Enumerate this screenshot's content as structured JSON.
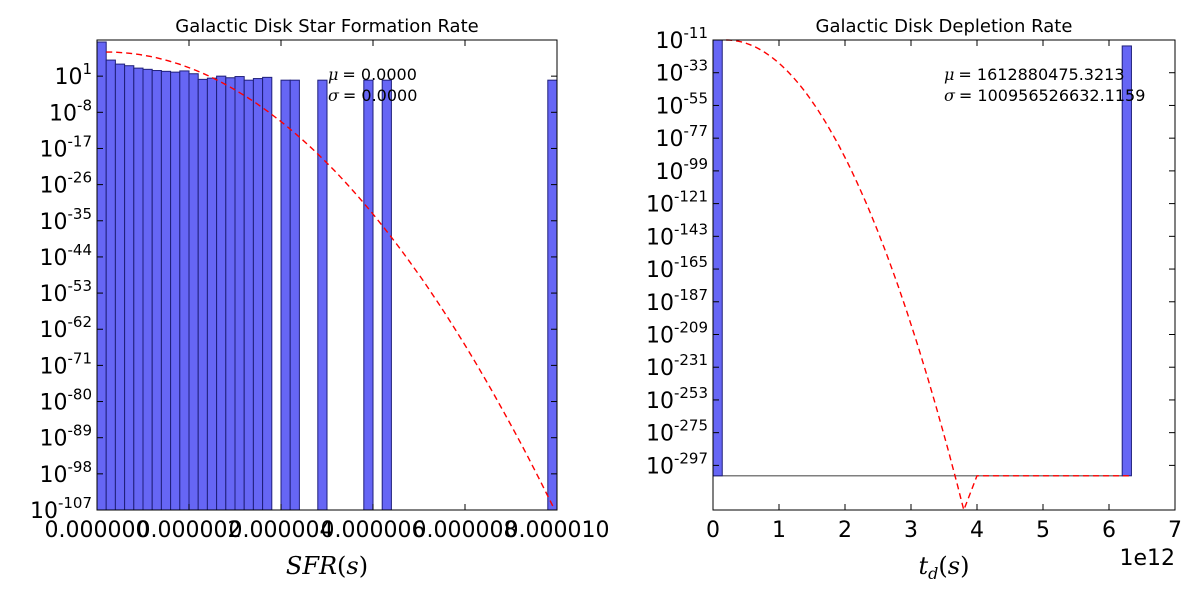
{
  "colors": {
    "bar_fill": "#6666f5",
    "bar_edge": "#1f1f7a",
    "fit_line": "#ff0000",
    "baseline": "#555555"
  },
  "chart_data": [
    {
      "type": "bar",
      "title": "Galactic Disk Star Formation Rate",
      "xlabel": "SFR(s)",
      "ylabel": "",
      "xlim": [
        0.0,
        1e-05
      ],
      "ylog_exponent_range": [
        -107,
        10
      ],
      "x_tick_labels": [
        "0.000000",
        "0.000002",
        "0.000004",
        "0.000006",
        "0.000008",
        "0.000010"
      ],
      "y_tick_labels": [
        {
          "base": "10",
          "exp": "1"
        },
        {
          "base": "10",
          "exp": "-8"
        },
        {
          "base": "10",
          "exp": "-17"
        },
        {
          "base": "10",
          "exp": "-26"
        },
        {
          "base": "10",
          "exp": "-35"
        },
        {
          "base": "10",
          "exp": "-44"
        },
        {
          "base": "10",
          "exp": "-53"
        },
        {
          "base": "10",
          "exp": "-62"
        },
        {
          "base": "10",
          "exp": "-71"
        },
        {
          "base": "10",
          "exp": "-80"
        },
        {
          "base": "10",
          "exp": "-89"
        },
        {
          "base": "10",
          "exp": "-98"
        },
        {
          "base": "10",
          "exp": "-107"
        }
      ],
      "y_tick_exponents": [
        1,
        -8,
        -17,
        -26,
        -35,
        -44,
        -53,
        -62,
        -71,
        -80,
        -89,
        -98,
        -107
      ],
      "bin_width": 2e-07,
      "bins": [
        {
          "x": 0.0,
          "log10": 9.5
        },
        {
          "x": 2e-07,
          "log10": 5.0
        },
        {
          "x": 4e-07,
          "log10": 4.0
        },
        {
          "x": 6e-07,
          "log10": 3.6
        },
        {
          "x": 8e-07,
          "log10": 3.0
        },
        {
          "x": 1e-06,
          "log10": 2.7
        },
        {
          "x": 1.2e-06,
          "log10": 2.4
        },
        {
          "x": 1.4e-06,
          "log10": 2.2
        },
        {
          "x": 1.6e-06,
          "log10": 2.0
        },
        {
          "x": 1.8e-06,
          "log10": 2.3
        },
        {
          "x": 2e-06,
          "log10": 1.6
        },
        {
          "x": 2.2e-06,
          "log10": 0.2
        },
        {
          "x": 2.4e-06,
          "log10": 0.5
        },
        {
          "x": 2.6e-06,
          "log10": 1.0
        },
        {
          "x": 2.8e-06,
          "log10": 0.6
        },
        {
          "x": 3e-06,
          "log10": 0.9
        },
        {
          "x": 3.2e-06,
          "log10": 0.0
        },
        {
          "x": 3.4e-06,
          "log10": 0.4
        },
        {
          "x": 3.6e-06,
          "log10": 0.7
        },
        {
          "x": 4e-06,
          "log10": 0.0
        },
        {
          "x": 4.2e-06,
          "log10": 0.0
        },
        {
          "x": 4.8e-06,
          "log10": 0.0
        },
        {
          "x": 5.8e-06,
          "log10": 0.0
        },
        {
          "x": 6.2e-06,
          "log10": 0.0
        },
        {
          "x": 9.8e-06,
          "log10": 0.0
        }
      ],
      "fit_curve": {
        "style": "dashed",
        "peak_x": 2e-07,
        "peak_log10": 7.0,
        "end_x": 9.95e-06,
        "end_log10": -107.0
      },
      "annotation": {
        "mu": "= 0.0000",
        "sigma": "= 0.0000"
      },
      "grid": false
    },
    {
      "type": "bar",
      "title": "Galactic Disk Depletion Rate",
      "xlabel": "t_d(s)",
      "ylabel": "",
      "xlim": [
        0,
        7
      ],
      "x_scale_offset": "1e12",
      "ylog_exponent_range": [
        -327,
        -11
      ],
      "x_tick_labels": [
        "0",
        "1",
        "2",
        "3",
        "4",
        "5",
        "6",
        "7"
      ],
      "y_tick_labels": [
        {
          "base": "10",
          "exp": "-11"
        },
        {
          "base": "10",
          "exp": "-33"
        },
        {
          "base": "10",
          "exp": "-55"
        },
        {
          "base": "10",
          "exp": "-77"
        },
        {
          "base": "10",
          "exp": "-99"
        },
        {
          "base": "10",
          "exp": "-121"
        },
        {
          "base": "10",
          "exp": "-143"
        },
        {
          "base": "10",
          "exp": "-165"
        },
        {
          "base": "10",
          "exp": "-187"
        },
        {
          "base": "10",
          "exp": "-209"
        },
        {
          "base": "10",
          "exp": "-231"
        },
        {
          "base": "10",
          "exp": "-253"
        },
        {
          "base": "10",
          "exp": "-275"
        },
        {
          "base": "10",
          "exp": "-297"
        }
      ],
      "y_tick_exponents": [
        -11,
        -33,
        -55,
        -77,
        -99,
        -121,
        -143,
        -165,
        -187,
        -209,
        -231,
        -253,
        -275,
        -297
      ],
      "bin_width": 0.14,
      "baseline_log10": -304,
      "bins": [
        {
          "x": 0.0,
          "log10": -11.0
        },
        {
          "x": 6.2,
          "log10": -15.0
        }
      ],
      "fit_curve": {
        "style": "dashed",
        "peak_x": 0.2,
        "peak_log10": -11.0,
        "zero_x": 3.8,
        "zero_log10": -327.0,
        "tail_log10": -304.0,
        "end_x": 6.3
      },
      "annotation": {
        "mu": "= 1612880475.3213",
        "sigma": "= 100956526632.1159"
      },
      "grid": false
    }
  ]
}
